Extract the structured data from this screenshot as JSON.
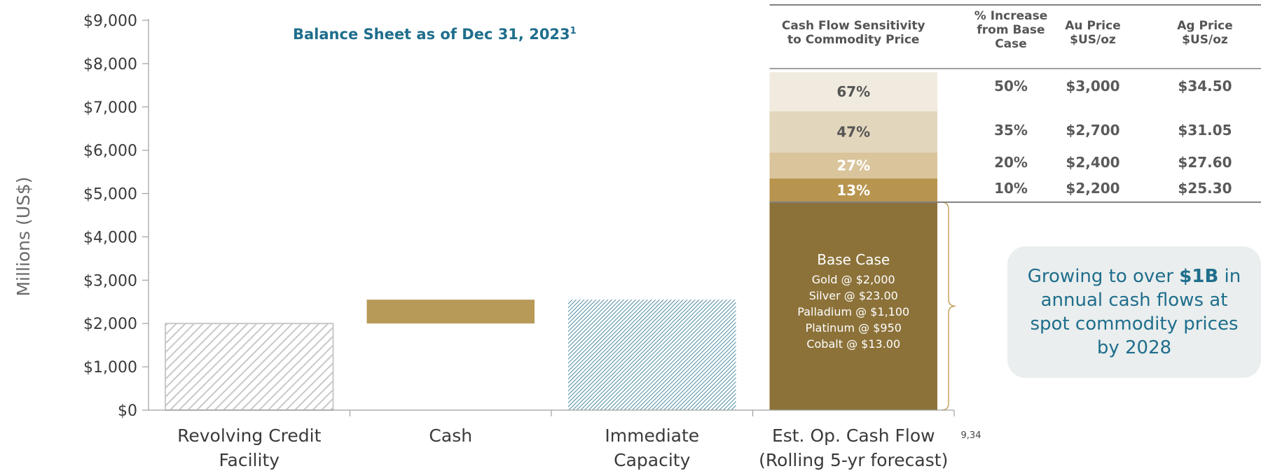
{
  "chart_data": {
    "type": "bar",
    "title": "Balance Sheet as of Dec 31, 2023",
    "title_superscript": "1",
    "ylabel": "Millions (US$)",
    "ylim": [
      0,
      9000
    ],
    "yticks": [
      "$0",
      "$1,000",
      "$2,000",
      "$3,000",
      "$4,000",
      "$5,000",
      "$6,000",
      "$7,000",
      "$8,000",
      "$9,000"
    ],
    "categories": [
      {
        "line1": "Revolving Credit",
        "line2": "Facility"
      },
      {
        "line1": "Cash",
        "line2": ""
      },
      {
        "line1": "Immediate",
        "line2": "Capacity"
      },
      {
        "line1": "Est. Op. Cash Flow",
        "line2": "(Rolling 5-yr forecast)"
      }
    ],
    "bars": [
      {
        "category": "Revolving Credit",
        "bottom": 0,
        "top": 2000,
        "style": "hatched",
        "color": "#c8c8c8"
      },
      {
        "category": "Cash",
        "bottom": 2000,
        "top": 2550,
        "style": "solid",
        "color": "#b89a58"
      },
      {
        "category": "Immediate",
        "bottom": 0,
        "top": 2550,
        "style": "dotted",
        "color": "#1f6e8c"
      },
      {
        "category": "Est. Op. Cash Flow",
        "bottom": 0,
        "top": 4800,
        "style": "solid",
        "color": "#8c7239"
      }
    ],
    "sensitivity_segments": [
      {
        "label": "13%",
        "bottom": 4800,
        "top": 5350,
        "color": "#b8954f",
        "text_color": "#ffffff"
      },
      {
        "label": "27%",
        "bottom": 5350,
        "top": 5950,
        "color": "#d9c49b",
        "text_color": "#ffffff"
      },
      {
        "label": "47%",
        "bottom": 5950,
        "top": 6900,
        "color": "#e2d6bd",
        "text_color": "#555555"
      },
      {
        "label": "67%",
        "bottom": 6900,
        "top": 7800,
        "color": "#f1ebdf",
        "text_color": "#555555"
      }
    ],
    "base_case": {
      "title": "Base Case",
      "lines": [
        "Gold @ $2,000",
        "Silver @ $23.00",
        "Palladium @ $1,100",
        "Platinum @ $950",
        "Cobalt @ $13.00"
      ]
    },
    "footnote": "9,34"
  },
  "table": {
    "headers": [
      [
        "Cash Flow Sensitivity",
        "to Commodity Price"
      ],
      [
        "% Increase",
        "from Base",
        "Case"
      ],
      [
        "Au Price",
        "$US/oz"
      ],
      [
        "Ag Price",
        "$US/oz"
      ]
    ],
    "rows": [
      {
        "increase": "50%",
        "au": "$3,000",
        "ag": "$34.50"
      },
      {
        "increase": "35%",
        "au": "$2,700",
        "ag": "$31.05"
      },
      {
        "increase": "20%",
        "au": "$2,400",
        "ag": "$27.60"
      },
      {
        "increase": "10%",
        "au": "$2,200",
        "ag": "$25.30"
      }
    ]
  },
  "callout": {
    "text_before": "Growing to over ",
    "bold": "$1B",
    "text_after": " in annual cash flows at spot commodity prices by 2028",
    "background": "#eaeeee",
    "text_color": "#1f6e8c"
  }
}
